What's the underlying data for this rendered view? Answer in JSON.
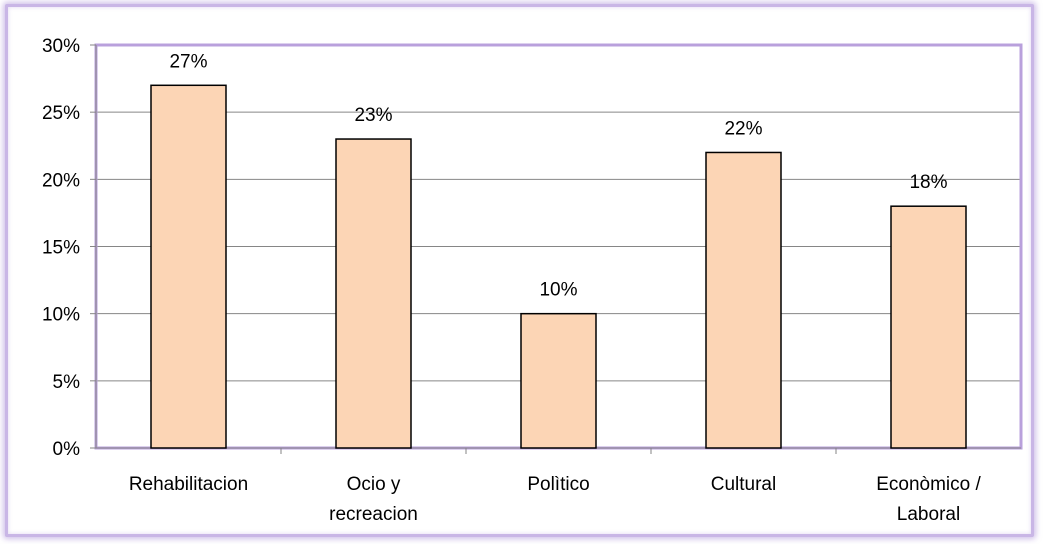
{
  "chart_data": {
    "type": "bar",
    "categories": [
      [
        "Rehabilitacion"
      ],
      [
        "Ocio y",
        "recreacion"
      ],
      [
        "Polìtico"
      ],
      [
        "Cultural"
      ],
      [
        "Econòmico /",
        "Laboral"
      ]
    ],
    "values": [
      27,
      23,
      10,
      22,
      18
    ],
    "data_labels": [
      "27%",
      "23%",
      "10%",
      "22%",
      "18%"
    ],
    "y_ticks": [
      "0%",
      "5%",
      "10%",
      "15%",
      "20%",
      "25%",
      "30%"
    ],
    "ylim": [
      0,
      30
    ],
    "grid": true,
    "legend": "none",
    "title": "",
    "xlabel": "",
    "ylabel": "",
    "colors": {
      "bar_fill": "#fcd5b5",
      "bar_stroke": "#000000",
      "grid": "#868686",
      "plot_border": "#b9a0dc",
      "frame": "#c9b6e6"
    }
  }
}
